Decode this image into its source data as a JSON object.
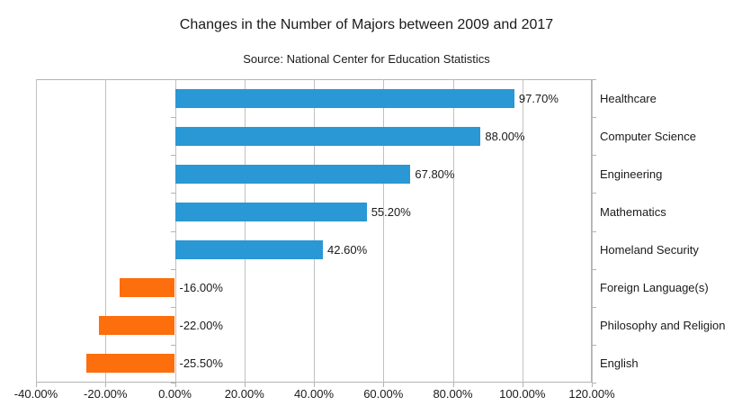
{
  "chart_data": {
    "type": "bar",
    "orientation": "horizontal",
    "title": "Changes in the Number of Majors between 2009 and 2017",
    "subtitle": "Source: National Center for Education Statistics",
    "categories": [
      "Healthcare",
      "Computer Science",
      "Engineering",
      "Mathematics",
      "Homeland Security",
      "Foreign Language(s)",
      "Philosophy and Religion",
      "English"
    ],
    "values": [
      97.7,
      88.0,
      67.8,
      55.2,
      42.6,
      -16.0,
      -22.0,
      -25.5
    ],
    "value_labels": [
      "97.70%",
      "88.00%",
      "67.80%",
      "55.20%",
      "42.60%",
      "-16.00%",
      "-22.00%",
      "-25.50%"
    ],
    "xlim": [
      -40,
      120
    ],
    "x_ticks": [
      -40,
      -20,
      0,
      20,
      40,
      60,
      80,
      100,
      120
    ],
    "x_tick_labels": [
      "-40.00%",
      "-20.00%",
      "0.00%",
      "20.00%",
      "40.00%",
      "60.00%",
      "80.00%",
      "100.00%",
      "120.00%"
    ],
    "grid": "vertical",
    "legend": "none",
    "colors": {
      "positive": "#2998d5",
      "negative": "#fd6e0d",
      "grid": "#c0c0c0",
      "axis": "#b3b3b3",
      "border": "#b3b3b3",
      "text": "#1a1a1a"
    }
  }
}
